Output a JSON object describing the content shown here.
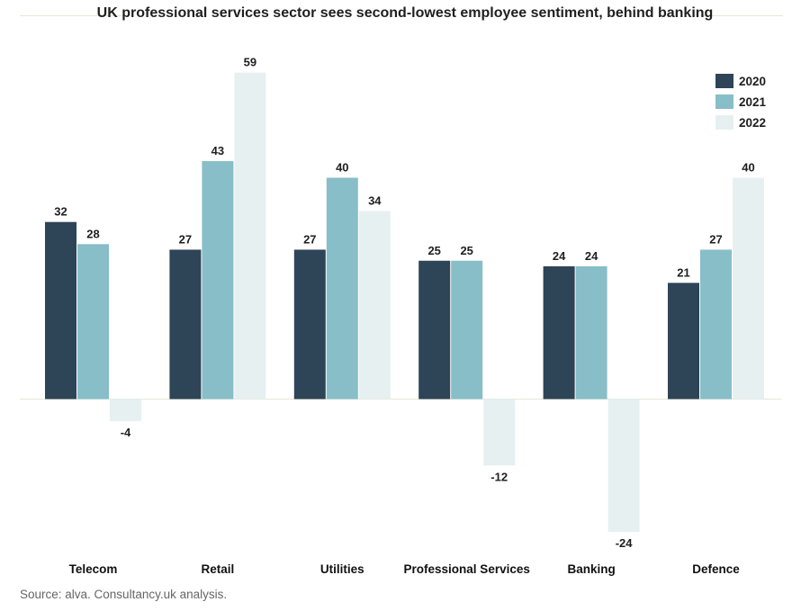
{
  "chart_data": {
    "type": "bar",
    "title": "UK professional services sector sees second-lowest employee sentiment, behind banking",
    "categories": [
      "Telecom",
      "Retail",
      "Utilities",
      "Professional Services",
      "Banking",
      "Defence"
    ],
    "series": [
      {
        "name": "2020",
        "color": "#2e4457",
        "values": [
          32,
          27,
          27,
          25,
          24,
          21
        ]
      },
      {
        "name": "2021",
        "color": "#87bec8",
        "values": [
          28,
          43,
          40,
          25,
          24,
          27
        ]
      },
      {
        "name": "2022",
        "color": "#e6f0f1",
        "values": [
          -4,
          59,
          34,
          -12,
          -24,
          40
        ]
      }
    ],
    "ylim": [
      -24,
      59
    ],
    "grid": false,
    "legend_position": "top-right",
    "xlabel": "",
    "ylabel": ""
  },
  "footer": {
    "source": "Source: alva. Consultancy.uk analysis."
  }
}
